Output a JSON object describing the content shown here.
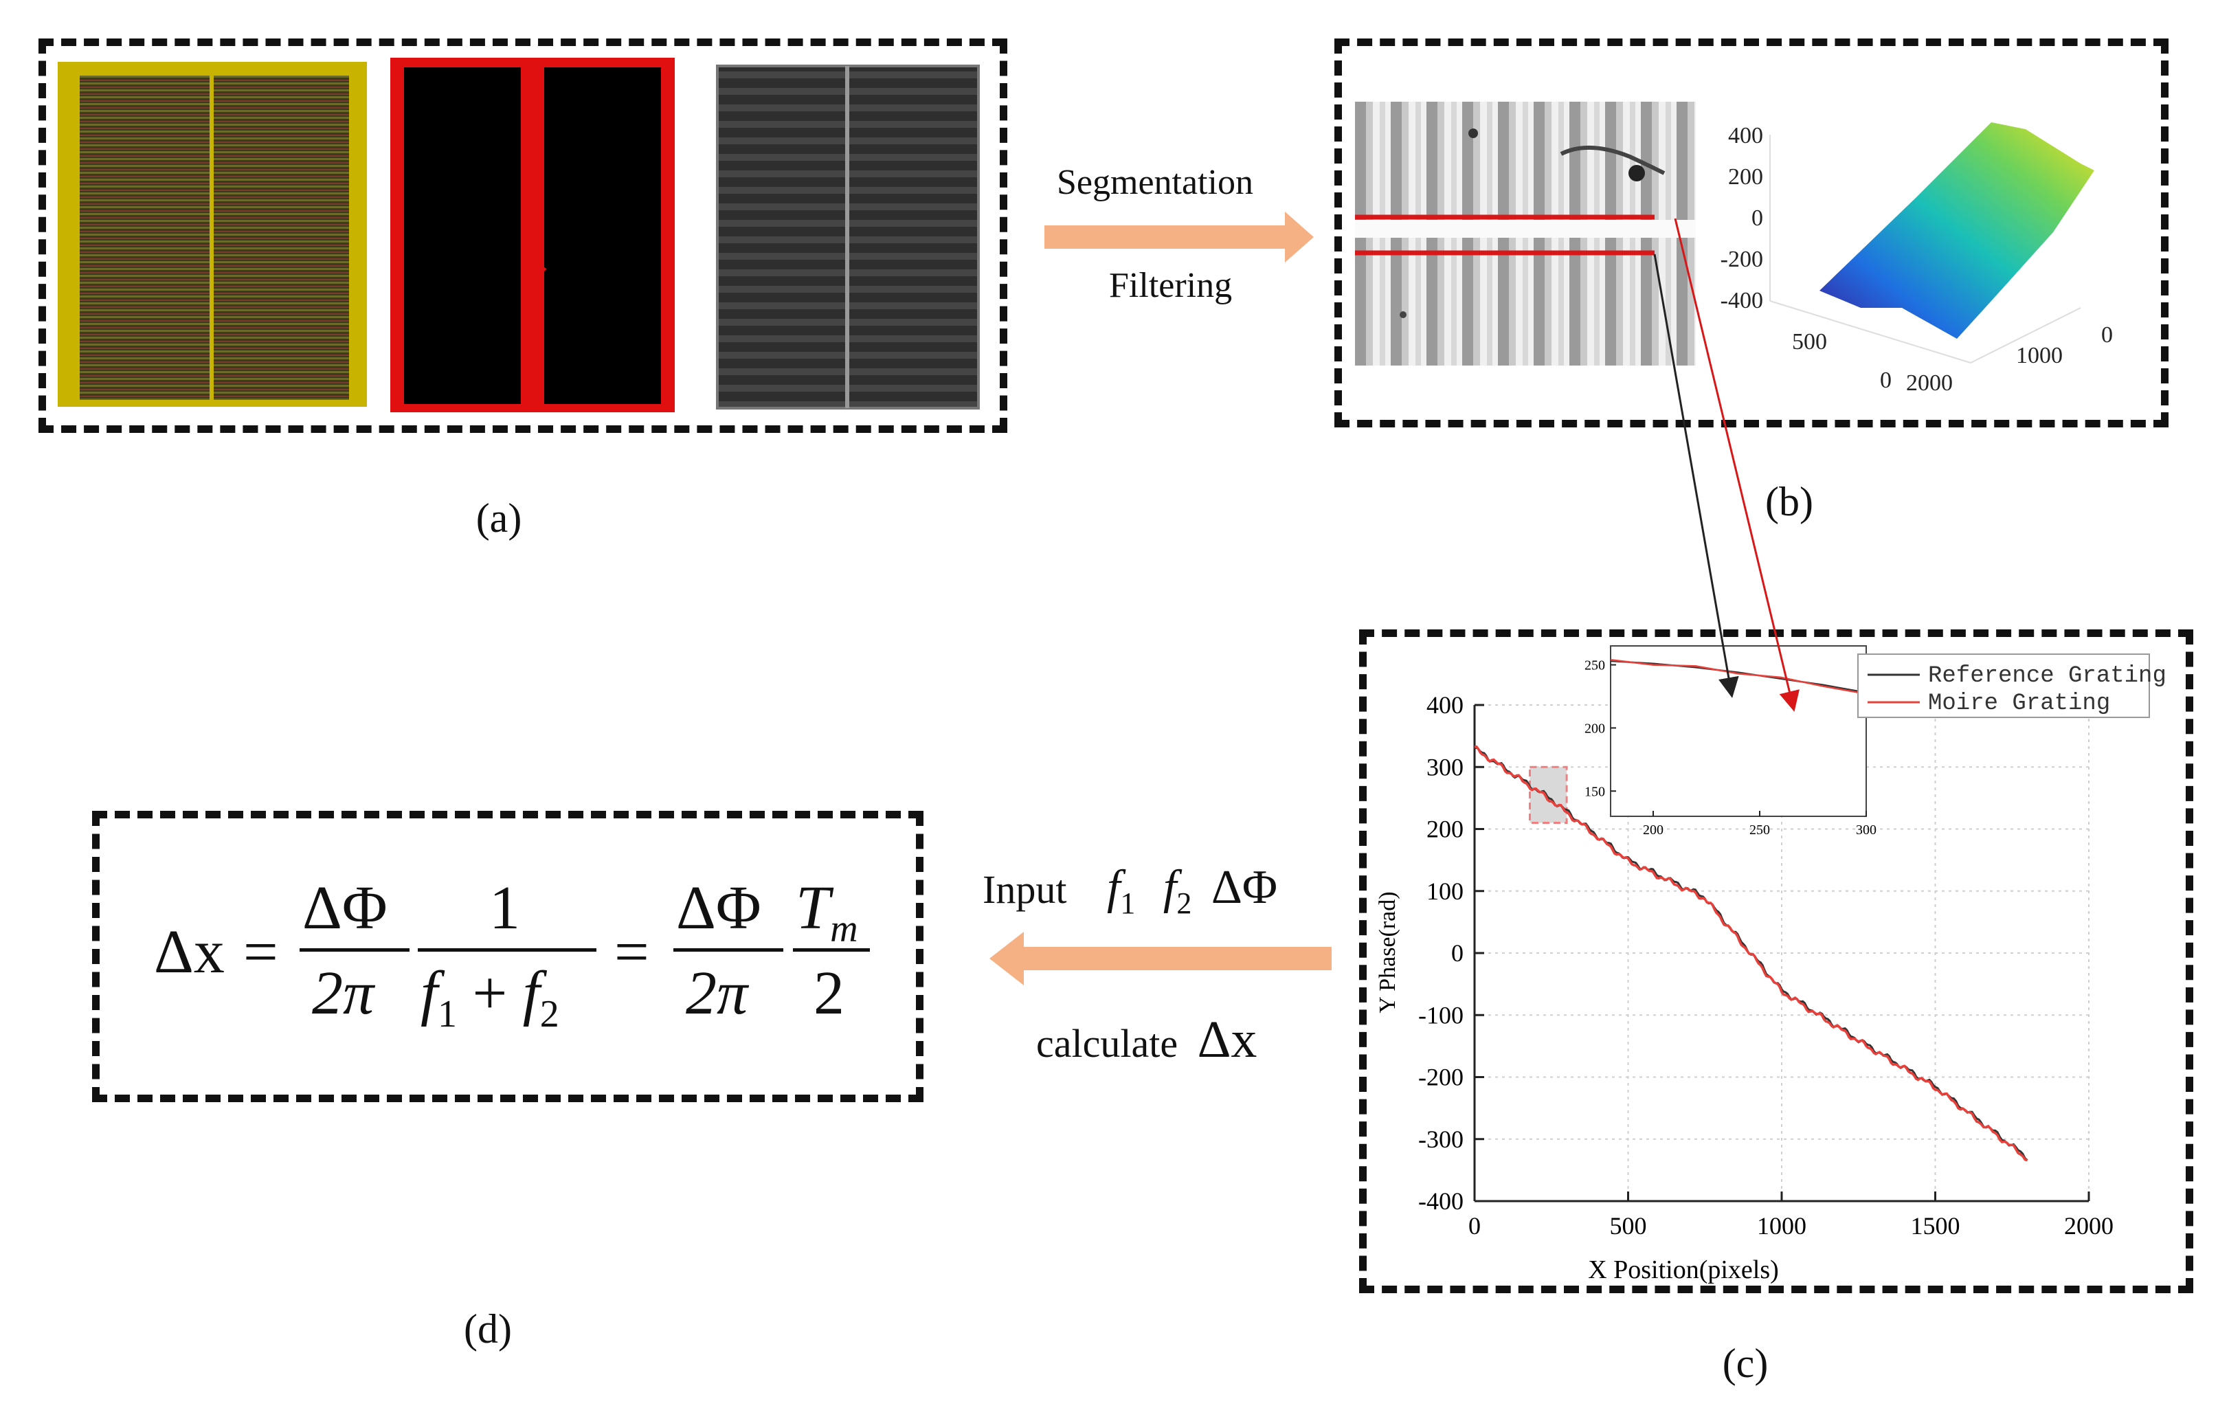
{
  "captions": {
    "a": "(a)",
    "b": "(b)",
    "c": "(c)",
    "d": "(d)"
  },
  "arrow_top": {
    "label1": "Segmentation",
    "label2": "Filtering"
  },
  "arrow_mid": {
    "label_input": "Input",
    "label_calc": "calculate",
    "sym_delta_x": "Δx"
  },
  "formula": {
    "lhs": "Δx",
    "dphi": "ΔΦ",
    "two_pi": "2π",
    "one": "1",
    "tm": "T",
    "tm_sub": "m",
    "two": "2"
  },
  "surface3d": {
    "z_ticks": [
      "400",
      "200",
      "0",
      "-200",
      "-400"
    ],
    "x_ticks": [
      "500",
      "0"
    ],
    "y_ticks": [
      "2000",
      "1000",
      "0"
    ]
  },
  "colors": {
    "arrow": "#f5b183",
    "dash": "#111111",
    "red_line": "#d81818",
    "ref_line": "#333333",
    "moire_line": "#e8403a"
  },
  "chart_data": {
    "type": "line",
    "title": "",
    "xlabel": "X Position(pixels)",
    "ylabel": "Y Phase(rad)",
    "xlim": [
      0,
      2000
    ],
    "ylim": [
      -400,
      400
    ],
    "x_ticks": [
      "0",
      "500",
      "1000",
      "1500",
      "2000"
    ],
    "y_ticks": [
      "400",
      "300",
      "200",
      "100",
      "0",
      "-100",
      "-200",
      "-300",
      "-400"
    ],
    "series": [
      {
        "name": "Reference Grating",
        "x": [
          0,
          250,
          500,
          750,
          1000,
          1250,
          1500,
          1800
        ],
        "values": [
          330,
          248,
          150,
          90,
          -60,
          -140,
          -215,
          -330
        ]
      },
      {
        "name": "Moire Grating",
        "x": [
          0,
          250,
          500,
          750,
          1000,
          1250,
          1500,
          1800
        ],
        "values": [
          330,
          246,
          148,
          88,
          -62,
          -142,
          -217,
          -332
        ]
      }
    ],
    "inset": {
      "xlim": [
        180,
        300
      ],
      "ylim": [
        130,
        265
      ],
      "x_ticks": [
        "200",
        "250",
        "300"
      ],
      "y_ticks": [
        "250",
        "200",
        "150"
      ],
      "series": [
        {
          "name": "Reference Grating",
          "x": [
            180,
            200,
            220,
            240,
            260,
            280,
            300
          ],
          "values": [
            253,
            251,
            248,
            244,
            239,
            234,
            228
          ]
        },
        {
          "name": "Moire Grating",
          "x": [
            180,
            200,
            220,
            240,
            260,
            280,
            300
          ],
          "values": [
            254,
            250,
            249,
            243,
            240,
            233,
            227
          ]
        }
      ]
    }
  }
}
